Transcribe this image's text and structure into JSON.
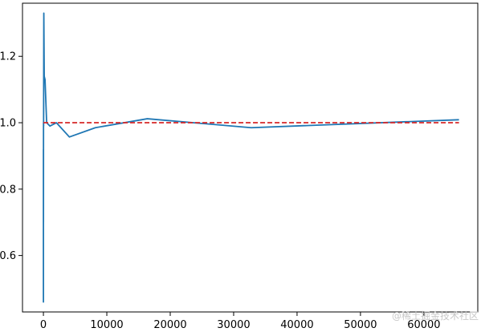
{
  "chart_data": {
    "type": "line",
    "title": "",
    "xlabel": "",
    "ylabel": "",
    "xlim": [
      -3300,
      68500
    ],
    "ylim": [
      0.43,
      1.36
    ],
    "grid": false,
    "legend": "none",
    "x_ticks": [
      0,
      10000,
      20000,
      30000,
      40000,
      50000,
      60000
    ],
    "y_ticks": [
      0.6,
      0.8,
      1.0,
      1.2
    ],
    "x_tick_labels": [
      "0",
      "10000",
      "20000",
      "30000",
      "40000",
      "50000",
      "60000"
    ],
    "y_tick_labels": [
      "0.6",
      "0.8",
      "1.0",
      "1.2"
    ],
    "series": [
      {
        "style": "solid",
        "color": "#1f77b4",
        "x": [
          1,
          2,
          4,
          8,
          16,
          32,
          64,
          128,
          256,
          512,
          1024,
          2048,
          4096,
          8192,
          16384,
          32768,
          65536
        ],
        "y": [
          0.68,
          0.46,
          0.92,
          0.7,
          1.0,
          0.99,
          1.33,
          1.14,
          1.13,
          1.0,
          0.99,
          1.0,
          0.957,
          0.985,
          1.012,
          0.985,
          1.009
        ]
      },
      {
        "style": "dashed",
        "color": "#d62728",
        "x": [
          0,
          65536
        ],
        "y": [
          1.0,
          1.0
        ]
      }
    ]
  },
  "watermark": "@稀土掘金技术社区"
}
